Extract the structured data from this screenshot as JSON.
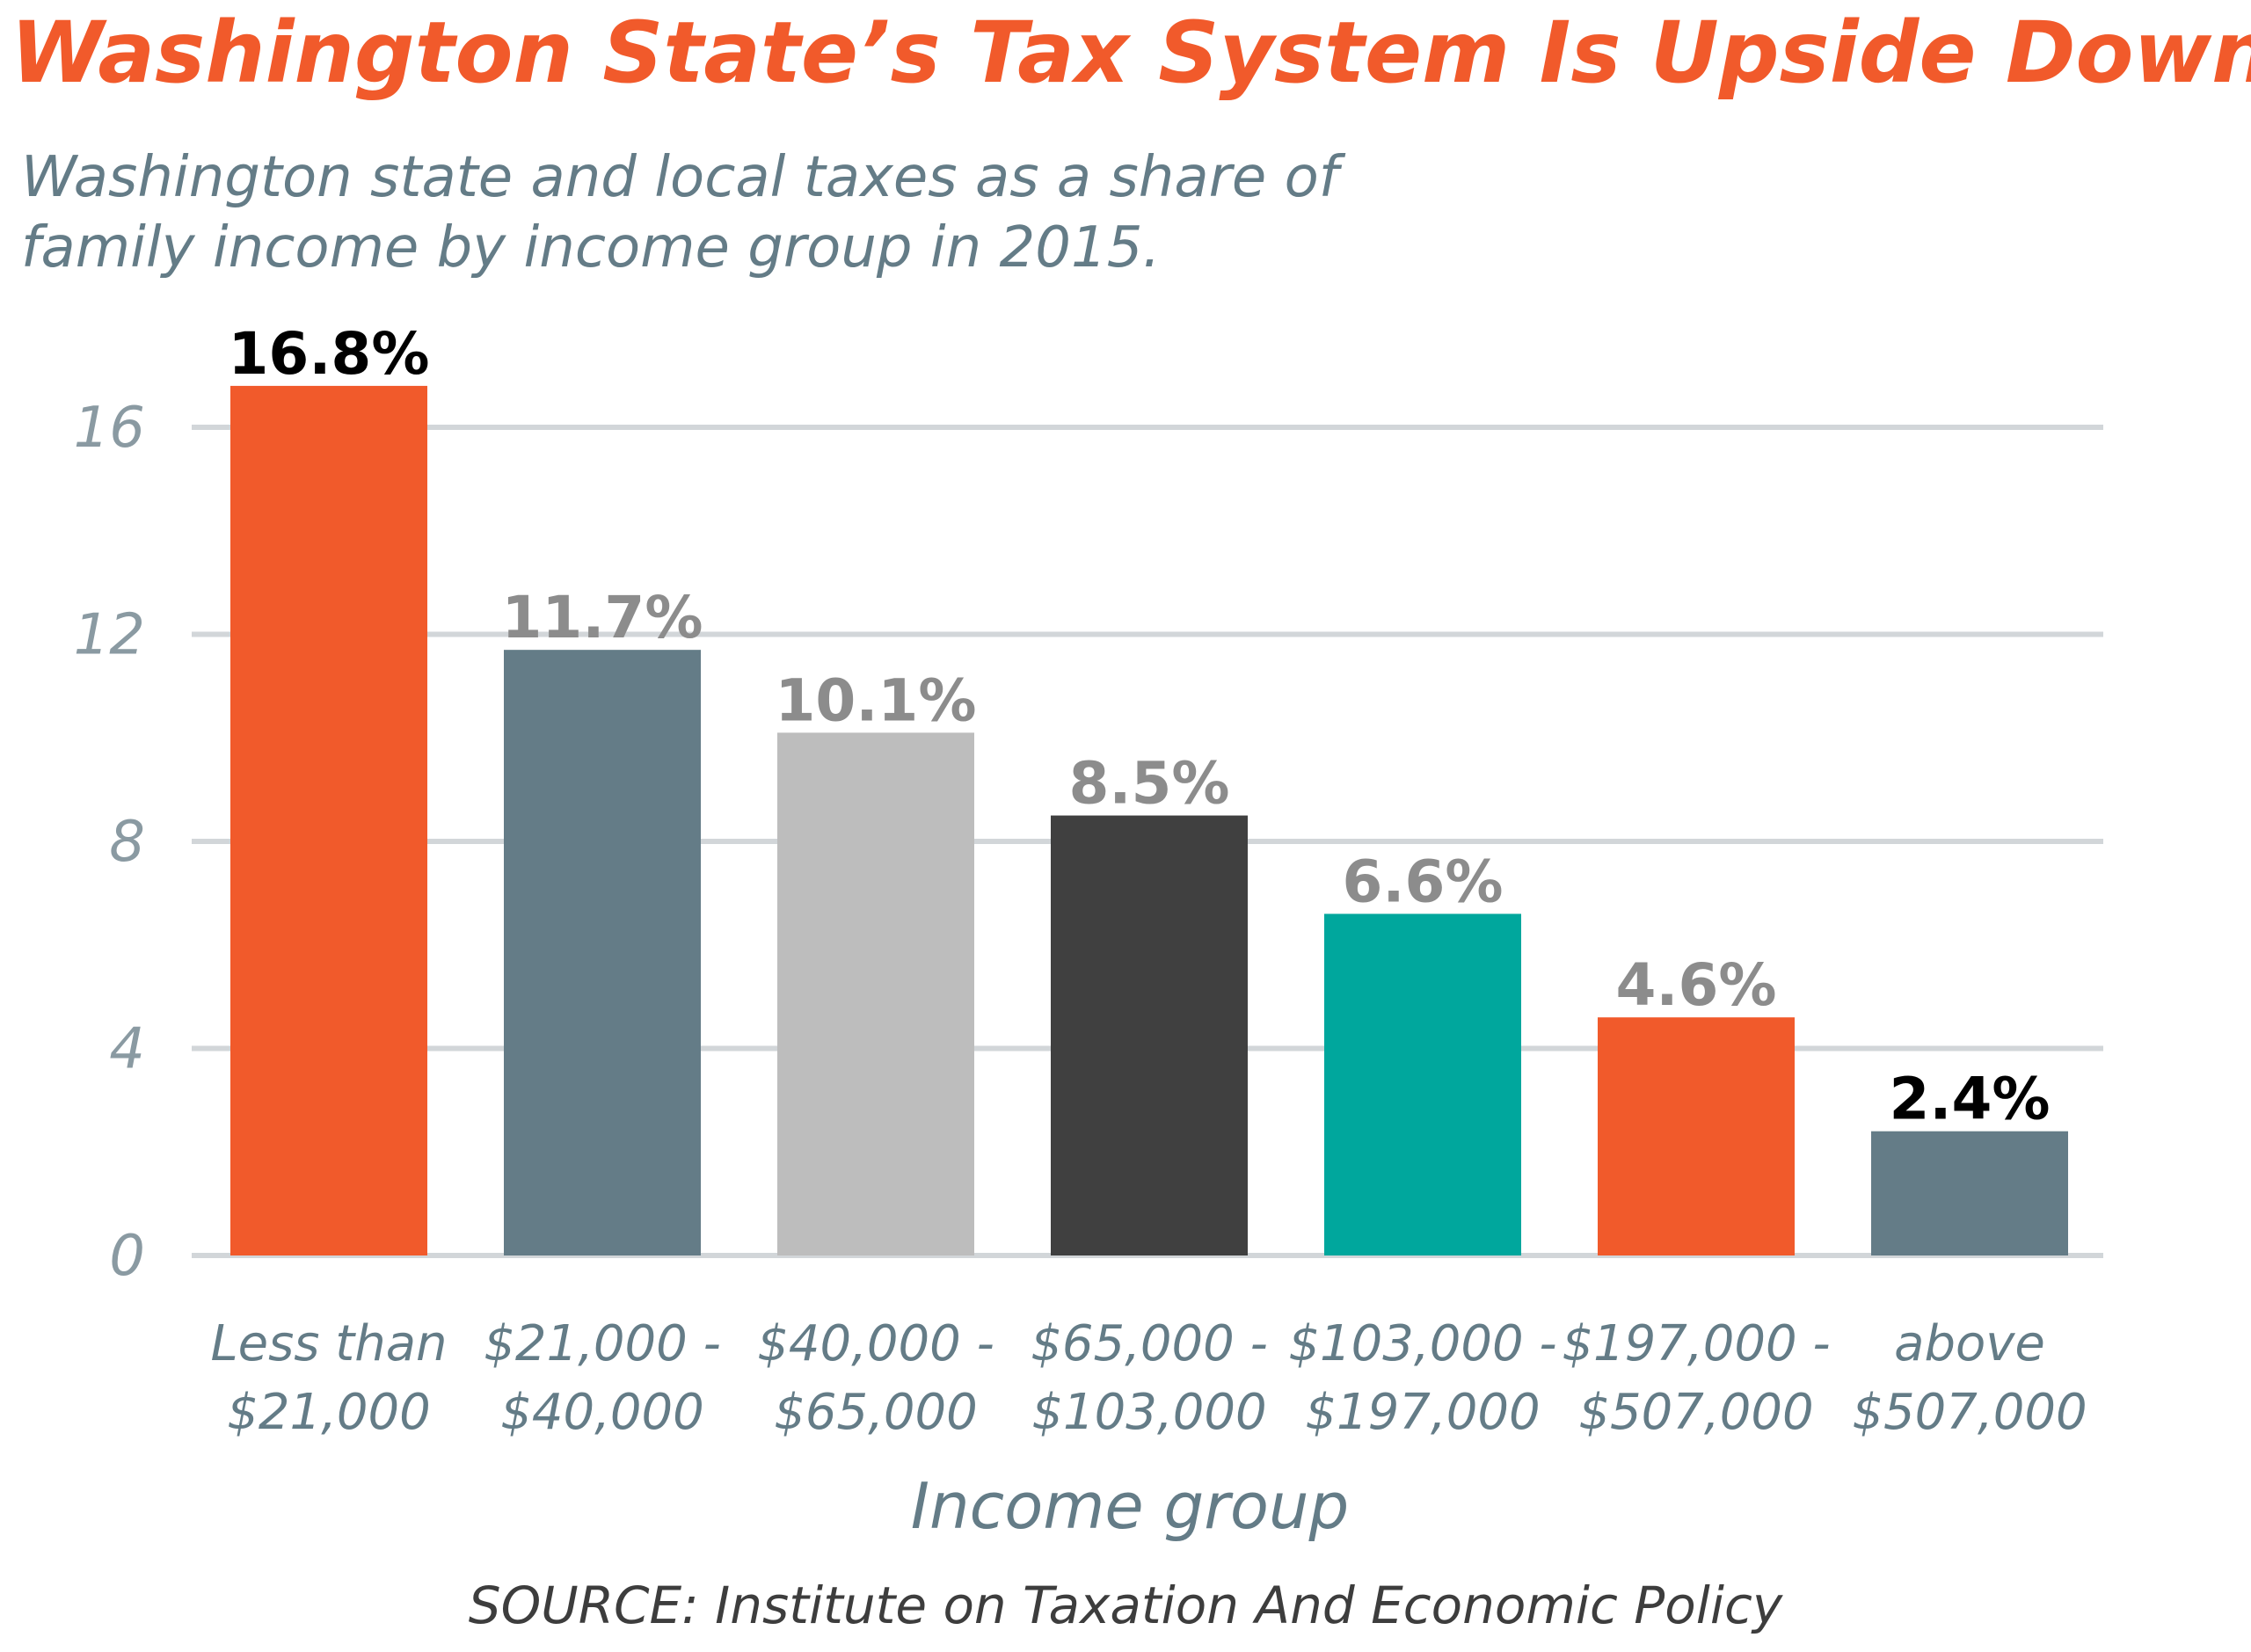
{
  "title": "Washington State’s Tax System Is Upside Down",
  "subtitle_lines": [
    "Washington state and local taxes as a share of",
    "family income by income group in 2015."
  ],
  "source": "SOURCE: Institute on Taxation And Economic Policy",
  "chart_data": {
    "type": "bar",
    "categories": [
      [
        "Less than",
        "$21,000"
      ],
      [
        "$21,000 -",
        "$40,000"
      ],
      [
        "$40,000 -",
        "$65,000"
      ],
      [
        "$65,000 -",
        "$103,000"
      ],
      [
        "$103,000 -",
        "$197,000"
      ],
      [
        "$197,000 -",
        "$507,000"
      ],
      [
        "above",
        "$507,000"
      ]
    ],
    "values": [
      16.8,
      11.7,
      10.1,
      8.5,
      6.6,
      4.6,
      2.4
    ],
    "value_labels": [
      "16.8%",
      "11.7%",
      "10.1%",
      "8.5%",
      "6.6%",
      "4.6%",
      "2.4%"
    ],
    "bar_colors": [
      "#f15a2b",
      "#647c87",
      "#bdbdbd",
      "#404040",
      "#00a79d",
      "#f15a2b",
      "#647c87"
    ],
    "label_colors": [
      "#000000",
      "#8c8c8c",
      "#8c8c8c",
      "#8c8c8c",
      "#8c8c8c",
      "#8c8c8c",
      "#000000"
    ],
    "yticks": [
      0,
      4,
      8,
      12,
      16
    ],
    "ylim": [
      0,
      16.8
    ],
    "xlabel": "Income group",
    "ylabel": "",
    "grid": true,
    "legend": "none"
  }
}
